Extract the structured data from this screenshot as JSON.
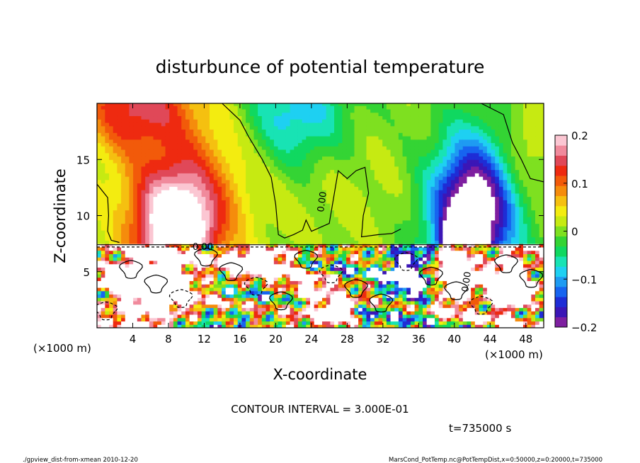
{
  "chart_data": {
    "type": "heatmap",
    "title": "disturbunce of potential temperature",
    "xlabel": "X-coordinate",
    "ylabel": "Z-coordinate",
    "x_unit_left": "(×1000 m)",
    "x_unit_right": "(×1000 m)",
    "xlim": [
      0,
      50
    ],
    "ylim": [
      0,
      20
    ],
    "x_ticks": [
      4,
      8,
      12,
      16,
      20,
      24,
      28,
      32,
      36,
      40,
      44,
      48
    ],
    "y_ticks": [
      5,
      10,
      15
    ],
    "x_tick_labels": [
      "4",
      "8",
      "12",
      "16",
      "20",
      "24",
      "28",
      "32",
      "36",
      "40",
      "44",
      "48"
    ],
    "y_tick_labels": [
      "5",
      "10",
      "15"
    ],
    "colorbar": {
      "range": [
        -0.2,
        0.2
      ],
      "ticks": [
        0.2,
        0.1,
        0,
        -0.1,
        -0.2
      ],
      "tick_labels": [
        "0.2",
        "0.1",
        "0",
        "−0.1",
        "−0.2"
      ],
      "colors": [
        "#7e1fa0",
        "#3b16b6",
        "#1e2dd6",
        "#1764f0",
        "#1e9bf2",
        "#1ed0f2",
        "#18e3b4",
        "#10d860",
        "#34d434",
        "#7ee020",
        "#c6ea12",
        "#f3ec10",
        "#f5c010",
        "#f58c0c",
        "#f25a0a",
        "#ee2a10",
        "#e04858",
        "#f08a9c",
        "#fbc6d2"
      ]
    },
    "contour_labels": [
      "0.00",
      "0.00",
      "0.00"
    ],
    "contour_interval": "CONTOUR INTERVAL = 3.000E-01",
    "time_label": "t=735000 s",
    "footer_left": "./gpview_dist-from-xmean   2010-12-20",
    "footer_right": "MarsCond_PotTemp.nc@PotTempDist,x=0:50000,z=0:20000,t=735000",
    "grid": false
  }
}
